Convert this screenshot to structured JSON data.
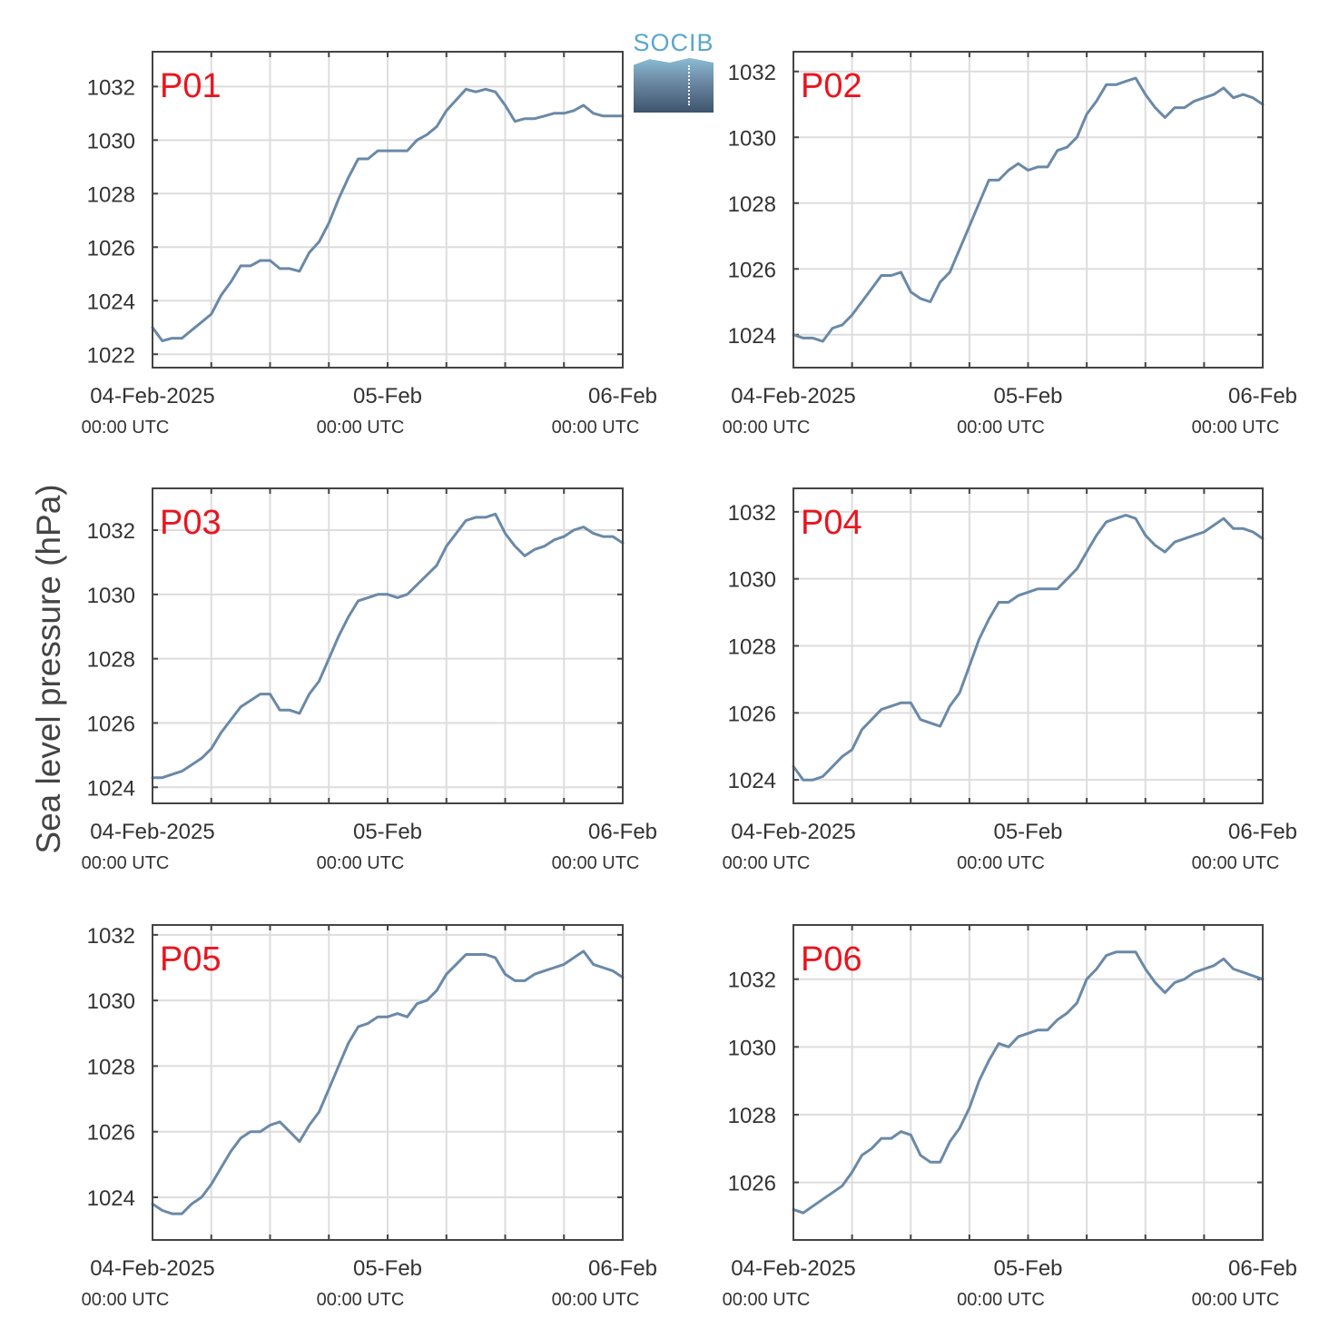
{
  "figure": {
    "ylabel": "Sea level pressure (hPa)",
    "logo_text": "SOCIB"
  },
  "chart_data": [
    {
      "type": "line",
      "label": "P01",
      "ylim": [
        1021.5,
        1033.3
      ],
      "yticks": [
        1022,
        1024,
        1026,
        1028,
        1030,
        1032
      ],
      "xlim": [
        0,
        48
      ],
      "xticks_major": [
        {
          "x": 0,
          "label": "04-Feb-2025",
          "sub": "00:00 UTC"
        },
        {
          "x": 24,
          "label": "05-Feb",
          "sub": "00:00 UTC"
        },
        {
          "x": 48,
          "label": "06-Feb",
          "sub": "00:00 UTC"
        }
      ],
      "xticks_minor": [
        6,
        12,
        18,
        30,
        36,
        42
      ],
      "x": [
        0,
        1,
        2,
        3,
        4,
        5,
        6,
        7,
        8,
        9,
        10,
        11,
        12,
        13,
        14,
        15,
        16,
        17,
        18,
        19,
        20,
        21,
        22,
        23,
        24,
        25,
        26,
        27,
        28,
        29,
        30,
        31,
        32,
        33,
        34,
        35,
        36,
        37,
        38,
        39,
        40,
        41,
        42,
        43,
        44,
        45,
        46,
        47,
        48
      ],
      "y": [
        1023.0,
        1022.5,
        1022.6,
        1022.6,
        1022.9,
        1023.2,
        1023.5,
        1024.2,
        1024.7,
        1025.3,
        1025.3,
        1025.5,
        1025.5,
        1025.2,
        1025.2,
        1025.1,
        1025.8,
        1026.2,
        1026.9,
        1027.8,
        1028.6,
        1029.3,
        1029.3,
        1029.6,
        1029.6,
        1029.6,
        1029.6,
        1030.0,
        1030.2,
        1030.5,
        1031.1,
        1031.5,
        1031.9,
        1031.8,
        1031.9,
        1031.8,
        1031.3,
        1030.7,
        1030.8,
        1030.8,
        1030.9,
        1031.0,
        1031.0,
        1031.1,
        1031.3,
        1031.0,
        1030.9,
        1030.9,
        1030.9
      ]
    },
    {
      "type": "line",
      "label": "P02",
      "ylim": [
        1023.0,
        1032.6
      ],
      "yticks": [
        1024,
        1026,
        1028,
        1030,
        1032
      ],
      "xlim": [
        0,
        48
      ],
      "xticks_major": [
        {
          "x": 0,
          "label": "04-Feb-2025",
          "sub": "00:00 UTC"
        },
        {
          "x": 24,
          "label": "05-Feb",
          "sub": "00:00 UTC"
        },
        {
          "x": 48,
          "label": "06-Feb",
          "sub": "00:00 UTC"
        }
      ],
      "xticks_minor": [
        6,
        12,
        18,
        30,
        36,
        42
      ],
      "x": [
        0,
        1,
        2,
        3,
        4,
        5,
        6,
        7,
        8,
        9,
        10,
        11,
        12,
        13,
        14,
        15,
        16,
        17,
        18,
        19,
        20,
        21,
        22,
        23,
        24,
        25,
        26,
        27,
        28,
        29,
        30,
        31,
        32,
        33,
        34,
        35,
        36,
        37,
        38,
        39,
        40,
        41,
        42,
        43,
        44,
        45,
        46,
        47,
        48
      ],
      "y": [
        1024.0,
        1023.9,
        1023.9,
        1023.8,
        1024.2,
        1024.3,
        1024.6,
        1025.0,
        1025.4,
        1025.8,
        1025.8,
        1025.9,
        1025.3,
        1025.1,
        1025.0,
        1025.6,
        1025.9,
        1026.6,
        1027.3,
        1028.0,
        1028.7,
        1028.7,
        1029.0,
        1029.2,
        1029.0,
        1029.1,
        1029.1,
        1029.6,
        1029.7,
        1030.0,
        1030.7,
        1031.1,
        1031.6,
        1031.6,
        1031.7,
        1031.8,
        1031.3,
        1030.9,
        1030.6,
        1030.9,
        1030.9,
        1031.1,
        1031.2,
        1031.3,
        1031.5,
        1031.2,
        1031.3,
        1031.2,
        1031.0
      ]
    },
    {
      "type": "line",
      "label": "P03",
      "ylim": [
        1023.5,
        1033.3
      ],
      "yticks": [
        1024,
        1026,
        1028,
        1030,
        1032
      ],
      "xlim": [
        0,
        48
      ],
      "xticks_major": [
        {
          "x": 0,
          "label": "04-Feb-2025",
          "sub": "00:00 UTC"
        },
        {
          "x": 24,
          "label": "05-Feb",
          "sub": "00:00 UTC"
        },
        {
          "x": 48,
          "label": "06-Feb",
          "sub": "00:00 UTC"
        }
      ],
      "xticks_minor": [
        6,
        12,
        18,
        30,
        36,
        42
      ],
      "x": [
        0,
        1,
        2,
        3,
        4,
        5,
        6,
        7,
        8,
        9,
        10,
        11,
        12,
        13,
        14,
        15,
        16,
        17,
        18,
        19,
        20,
        21,
        22,
        23,
        24,
        25,
        26,
        27,
        28,
        29,
        30,
        31,
        32,
        33,
        34,
        35,
        36,
        37,
        38,
        39,
        40,
        41,
        42,
        43,
        44,
        45,
        46,
        47,
        48
      ],
      "y": [
        1024.3,
        1024.3,
        1024.4,
        1024.5,
        1024.7,
        1024.9,
        1025.2,
        1025.7,
        1026.1,
        1026.5,
        1026.7,
        1026.9,
        1026.9,
        1026.4,
        1026.4,
        1026.3,
        1026.9,
        1027.3,
        1028.0,
        1028.7,
        1029.3,
        1029.8,
        1029.9,
        1030.0,
        1030.0,
        1029.9,
        1030.0,
        1030.3,
        1030.6,
        1030.9,
        1031.5,
        1031.9,
        1032.3,
        1032.4,
        1032.4,
        1032.5,
        1031.9,
        1031.5,
        1031.2,
        1031.4,
        1031.5,
        1031.7,
        1031.8,
        1032.0,
        1032.1,
        1031.9,
        1031.8,
        1031.8,
        1031.6
      ]
    },
    {
      "type": "line",
      "label": "P04",
      "ylim": [
        1023.3,
        1032.7
      ],
      "yticks": [
        1024,
        1026,
        1028,
        1030,
        1032
      ],
      "xlim": [
        0,
        48
      ],
      "xticks_major": [
        {
          "x": 0,
          "label": "04-Feb-2025",
          "sub": "00:00 UTC"
        },
        {
          "x": 24,
          "label": "05-Feb",
          "sub": "00:00 UTC"
        },
        {
          "x": 48,
          "label": "06-Feb",
          "sub": "00:00 UTC"
        }
      ],
      "xticks_minor": [
        6,
        12,
        18,
        30,
        36,
        42
      ],
      "x": [
        0,
        1,
        2,
        3,
        4,
        5,
        6,
        7,
        8,
        9,
        10,
        11,
        12,
        13,
        14,
        15,
        16,
        17,
        18,
        19,
        20,
        21,
        22,
        23,
        24,
        25,
        26,
        27,
        28,
        29,
        30,
        31,
        32,
        33,
        34,
        35,
        36,
        37,
        38,
        39,
        40,
        41,
        42,
        43,
        44,
        45,
        46,
        47,
        48
      ],
      "y": [
        1024.4,
        1024.0,
        1024.0,
        1024.1,
        1024.4,
        1024.7,
        1024.9,
        1025.5,
        1025.8,
        1026.1,
        1026.2,
        1026.3,
        1026.3,
        1025.8,
        1025.7,
        1025.6,
        1026.2,
        1026.6,
        1027.4,
        1028.2,
        1028.8,
        1029.3,
        1029.3,
        1029.5,
        1029.6,
        1029.7,
        1029.7,
        1029.7,
        1030.0,
        1030.3,
        1030.8,
        1031.3,
        1031.7,
        1031.8,
        1031.9,
        1031.8,
        1031.3,
        1031.0,
        1030.8,
        1031.1,
        1031.2,
        1031.3,
        1031.4,
        1031.6,
        1031.8,
        1031.5,
        1031.5,
        1031.4,
        1031.2
      ]
    },
    {
      "type": "line",
      "label": "P05",
      "ylim": [
        1022.7,
        1032.3
      ],
      "yticks": [
        1024,
        1026,
        1028,
        1030,
        1032
      ],
      "xlim": [
        0,
        48
      ],
      "xticks_major": [
        {
          "x": 0,
          "label": "04-Feb-2025",
          "sub": "00:00 UTC"
        },
        {
          "x": 24,
          "label": "05-Feb",
          "sub": "00:00 UTC"
        },
        {
          "x": 48,
          "label": "06-Feb",
          "sub": "00:00 UTC"
        }
      ],
      "xticks_minor": [
        6,
        12,
        18,
        30,
        36,
        42
      ],
      "x": [
        0,
        1,
        2,
        3,
        4,
        5,
        6,
        7,
        8,
        9,
        10,
        11,
        12,
        13,
        14,
        15,
        16,
        17,
        18,
        19,
        20,
        21,
        22,
        23,
        24,
        25,
        26,
        27,
        28,
        29,
        30,
        31,
        32,
        33,
        34,
        35,
        36,
        37,
        38,
        39,
        40,
        41,
        42,
        43,
        44,
        45,
        46,
        47,
        48
      ],
      "y": [
        1023.8,
        1023.6,
        1023.5,
        1023.5,
        1023.8,
        1024.0,
        1024.4,
        1024.9,
        1025.4,
        1025.8,
        1026.0,
        1026.0,
        1026.2,
        1026.3,
        1026.0,
        1025.7,
        1026.2,
        1026.6,
        1027.3,
        1028.0,
        1028.7,
        1029.2,
        1029.3,
        1029.5,
        1029.5,
        1029.6,
        1029.5,
        1029.9,
        1030.0,
        1030.3,
        1030.8,
        1031.1,
        1031.4,
        1031.4,
        1031.4,
        1031.3,
        1030.8,
        1030.6,
        1030.6,
        1030.8,
        1030.9,
        1031.0,
        1031.1,
        1031.3,
        1031.5,
        1031.1,
        1031.0,
        1030.9,
        1030.7
      ]
    },
    {
      "type": "line",
      "label": "P06",
      "ylim": [
        1024.3,
        1033.6
      ],
      "yticks": [
        1026,
        1028,
        1030,
        1032
      ],
      "xlim": [
        0,
        48
      ],
      "xticks_major": [
        {
          "x": 0,
          "label": "04-Feb-2025",
          "sub": "00:00 UTC"
        },
        {
          "x": 24,
          "label": "05-Feb",
          "sub": "00:00 UTC"
        },
        {
          "x": 48,
          "label": "06-Feb",
          "sub": "00:00 UTC"
        }
      ],
      "xticks_minor": [
        6,
        12,
        18,
        30,
        36,
        42
      ],
      "x": [
        0,
        1,
        2,
        3,
        4,
        5,
        6,
        7,
        8,
        9,
        10,
        11,
        12,
        13,
        14,
        15,
        16,
        17,
        18,
        19,
        20,
        21,
        22,
        23,
        24,
        25,
        26,
        27,
        28,
        29,
        30,
        31,
        32,
        33,
        34,
        35,
        36,
        37,
        38,
        39,
        40,
        41,
        42,
        43,
        44,
        45,
        46,
        47,
        48
      ],
      "y": [
        1025.2,
        1025.1,
        1025.3,
        1025.5,
        1025.7,
        1025.9,
        1026.3,
        1026.8,
        1027.0,
        1027.3,
        1027.3,
        1027.5,
        1027.4,
        1026.8,
        1026.6,
        1026.6,
        1027.2,
        1027.6,
        1028.2,
        1029.0,
        1029.6,
        1030.1,
        1030.0,
        1030.3,
        1030.4,
        1030.5,
        1030.5,
        1030.8,
        1031.0,
        1031.3,
        1032.0,
        1032.3,
        1032.7,
        1032.8,
        1032.8,
        1032.8,
        1032.3,
        1031.9,
        1031.6,
        1031.9,
        1032.0,
        1032.2,
        1032.3,
        1032.4,
        1032.6,
        1032.3,
        1032.2,
        1032.1,
        1032.0
      ]
    }
  ],
  "colors": {
    "line": "#6a89a8",
    "label": "#e8151f",
    "grid": "#dddddd",
    "axis": "#444444",
    "text": "#333333"
  }
}
